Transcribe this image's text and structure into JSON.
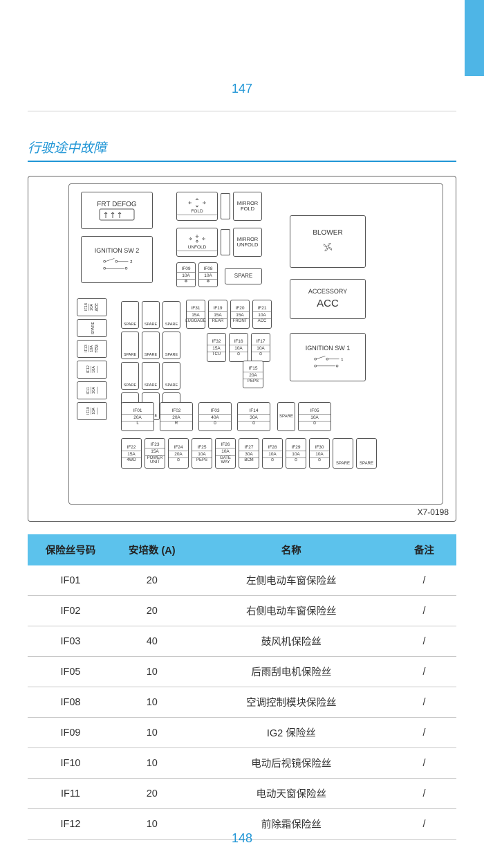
{
  "page_number_top": "147",
  "page_number_bottom": "148",
  "section_title": "行驶途中故障",
  "diagram_id": "X7-0198",
  "colors": {
    "accent": "#2196d6",
    "tab": "#4eb5e6",
    "table_header_bg": "#5cc2ec",
    "border": "#c8c8c8",
    "text": "#333333"
  },
  "diagram": {
    "frt_defog": "FRT DEFOG",
    "ignition_sw2": "IGNITION SW 2",
    "fold": "FOLD",
    "mirror_fold": "MIRROR FOLD",
    "unfold": "UNFOLD",
    "mirror_unfold": "MIRROR UNFOLD",
    "blower": "BLOWER",
    "accessory": "ACCESSORY",
    "acc": "ACC",
    "ignition_sw1": "IGNITION SW 1",
    "spare": "SPARE",
    "left_col": [
      {
        "id": "IF18",
        "amp": "20A",
        "note": "ACC"
      },
      {
        "id": "",
        "amp": "",
        "note": "SPARE"
      },
      {
        "id": "IF13",
        "amp": "10A",
        "note": "TCM"
      },
      {
        "id": "IF12",
        "amp": "10A",
        "note": ""
      },
      {
        "id": "IF11",
        "amp": "20A",
        "note": ""
      },
      {
        "id": "IF10",
        "amp": "10A",
        "note": ""
      }
    ],
    "mid_small": [
      {
        "id": "IF09",
        "amp": "10A"
      },
      {
        "id": "IF08",
        "amp": "10A"
      }
    ],
    "row_a": [
      {
        "id": "IF31",
        "amp": "15A",
        "note": "LUGGAGE"
      },
      {
        "id": "IF19",
        "amp": "15A",
        "note": "REAR"
      },
      {
        "id": "IF20",
        "amp": "15A",
        "note": "FRONT"
      },
      {
        "id": "IF21",
        "amp": "10A",
        "note": "ACC"
      }
    ],
    "row_b": [
      {
        "id": "IF32",
        "amp": "15A",
        "note": "TCU"
      },
      {
        "id": "IF16",
        "amp": "10A",
        "note": ""
      },
      {
        "id": "IF17",
        "amp": "10A",
        "note": ""
      }
    ],
    "if15": {
      "id": "IF15",
      "amp": "20A",
      "note": "PEPS"
    },
    "row_c": [
      {
        "id": "IF01",
        "amp": "20A",
        "note": "L"
      },
      {
        "id": "IF02",
        "amp": "20A",
        "note": "R"
      },
      {
        "id": "IF03",
        "amp": "40A",
        "note": ""
      },
      {
        "id": "IF14",
        "amp": "30A",
        "note": ""
      },
      {
        "id2": "SPARE"
      },
      {
        "id": "IF05",
        "amp": "10A",
        "note": ""
      }
    ],
    "row_d": [
      {
        "id": "IF22",
        "amp": "15A",
        "note": "4WD"
      },
      {
        "id": "IF23",
        "amp": "15A",
        "note": "POWER UNIT"
      },
      {
        "id": "IF24",
        "amp": "20A",
        "note": ""
      },
      {
        "id": "IF25",
        "amp": "10A",
        "note": "PEPS"
      },
      {
        "id": "IF26",
        "amp": "10A",
        "note": "GATE WAY"
      },
      {
        "id": "IF27",
        "amp": "30A",
        "note": "BCM"
      },
      {
        "id": "IF28",
        "amp": "10A",
        "note": ""
      },
      {
        "id": "IF29",
        "amp": "10A",
        "note": ""
      },
      {
        "id": "IF30",
        "amp": "10A",
        "note": ""
      },
      {
        "id2": "SPARE"
      },
      {
        "id2": "SPARE"
      }
    ]
  },
  "table": {
    "headers": [
      "保险丝号码",
      "安培数 (A)",
      "名称",
      "备注"
    ],
    "rows": [
      [
        "IF01",
        "20",
        "左侧电动车窗保险丝",
        "/"
      ],
      [
        "IF02",
        "20",
        "右侧电动车窗保险丝",
        "/"
      ],
      [
        "IF03",
        "40",
        "鼓风机保险丝",
        "/"
      ],
      [
        "IF05",
        "10",
        "后雨刮电机保险丝",
        "/"
      ],
      [
        "IF08",
        "10",
        "空调控制模块保险丝",
        "/"
      ],
      [
        "IF09",
        "10",
        "IG2 保险丝",
        "/"
      ],
      [
        "IF10",
        "10",
        "电动后视镜保险丝",
        "/"
      ],
      [
        "IF11",
        "20",
        "电动天窗保险丝",
        "/"
      ],
      [
        "IF12",
        "10",
        "前除霜保险丝",
        "/"
      ]
    ]
  }
}
